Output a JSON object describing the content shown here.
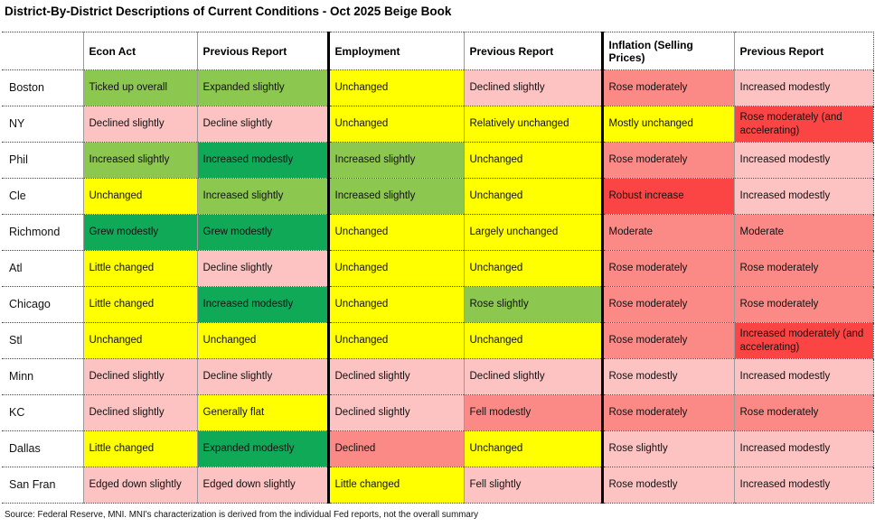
{
  "chart_data": {
    "type": "table",
    "title": "District-By-District Descriptions of Current Conditions - Oct 2025 Beige Book",
    "source": "Source: Federal Reserve, MNI. MNI's characterization is derived from the individual Fed reports, not the overall summary",
    "columns": [
      "",
      "Econ Act",
      "Previous Report",
      "Employment",
      "Previous Report",
      "Inflation (Selling Prices)",
      "Previous Report"
    ],
    "color_key": {
      "green": "#8CC750",
      "darkgreen": "#0FA958",
      "yellow": "#FFFF00",
      "pink": "#FCC3C2",
      "salmon": "#FB8A87",
      "red": "#FB4545"
    },
    "rows": [
      {
        "district": "Boston",
        "cells": [
          {
            "text": "Ticked up overall",
            "color": "green"
          },
          {
            "text": "Expanded slightly",
            "color": "green"
          },
          {
            "text": "Unchanged",
            "color": "yellow"
          },
          {
            "text": "Declined slightly",
            "color": "pink"
          },
          {
            "text": "Rose moderately",
            "color": "salmon"
          },
          {
            "text": "Increased modestly",
            "color": "pink"
          }
        ]
      },
      {
        "district": "NY",
        "cells": [
          {
            "text": "Declined slightly",
            "color": "pink"
          },
          {
            "text": "Decline slightly",
            "color": "pink"
          },
          {
            "text": "Unchanged",
            "color": "yellow"
          },
          {
            "text": "Relatively unchanged",
            "color": "yellow"
          },
          {
            "text": "Mostly unchanged",
            "color": "yellow"
          },
          {
            "text": "Rose moderately (and accelerating)",
            "color": "red"
          }
        ]
      },
      {
        "district": "Phil",
        "cells": [
          {
            "text": "Increased slightly",
            "color": "green"
          },
          {
            "text": "Increased modestly",
            "color": "darkgreen"
          },
          {
            "text": "Increased slightly",
            "color": "green"
          },
          {
            "text": "Unchanged",
            "color": "yellow"
          },
          {
            "text": "Rose moderately",
            "color": "salmon"
          },
          {
            "text": "Increased modestly",
            "color": "pink"
          }
        ]
      },
      {
        "district": "Cle",
        "cells": [
          {
            "text": "Unchanged",
            "color": "yellow"
          },
          {
            "text": "Increased slightly",
            "color": "green"
          },
          {
            "text": "Increased slightly",
            "color": "green"
          },
          {
            "text": "Unchanged",
            "color": "yellow"
          },
          {
            "text": "Robust increase",
            "color": "red"
          },
          {
            "text": "Increased modestly",
            "color": "pink"
          }
        ]
      },
      {
        "district": "Richmond",
        "cells": [
          {
            "text": "Grew modestly",
            "color": "darkgreen"
          },
          {
            "text": "Grew modestly",
            "color": "darkgreen"
          },
          {
            "text": "Unchanged",
            "color": "yellow"
          },
          {
            "text": "Largely unchanged",
            "color": "yellow"
          },
          {
            "text": "Moderate",
            "color": "salmon"
          },
          {
            "text": "Moderate",
            "color": "salmon"
          }
        ]
      },
      {
        "district": "Atl",
        "cells": [
          {
            "text": "Little changed",
            "color": "yellow"
          },
          {
            "text": "Decline slightly",
            "color": "pink"
          },
          {
            "text": "Unchanged",
            "color": "yellow"
          },
          {
            "text": "Unchanged",
            "color": "yellow"
          },
          {
            "text": "Rose moderately",
            "color": "salmon"
          },
          {
            "text": "Rose moderately",
            "color": "salmon"
          }
        ]
      },
      {
        "district": "Chicago",
        "cells": [
          {
            "text": "Little changed",
            "color": "yellow"
          },
          {
            "text": "Increased modestly",
            "color": "darkgreen"
          },
          {
            "text": "Unchanged",
            "color": "yellow"
          },
          {
            "text": "Rose slightly",
            "color": "green"
          },
          {
            "text": "Rose moderately",
            "color": "salmon"
          },
          {
            "text": "Rose moderately",
            "color": "salmon"
          }
        ]
      },
      {
        "district": "Stl",
        "cells": [
          {
            "text": "Unchanged",
            "color": "yellow"
          },
          {
            "text": "Unchanged",
            "color": "yellow"
          },
          {
            "text": "Unchanged",
            "color": "yellow"
          },
          {
            "text": "Unchanged",
            "color": "yellow"
          },
          {
            "text": "Rose moderately",
            "color": "salmon"
          },
          {
            "text": "Increased moderately (and accelerating)",
            "color": "red"
          }
        ]
      },
      {
        "district": "Minn",
        "cells": [
          {
            "text": "Declined slightly",
            "color": "pink"
          },
          {
            "text": "Decline slightly",
            "color": "pink"
          },
          {
            "text": "Declined slightly",
            "color": "pink"
          },
          {
            "text": "Declined slightly",
            "color": "pink"
          },
          {
            "text": "Rose modestly",
            "color": "pink"
          },
          {
            "text": "Increased modestly",
            "color": "pink"
          }
        ]
      },
      {
        "district": "KC",
        "cells": [
          {
            "text": "Declined slightly",
            "color": "pink"
          },
          {
            "text": "Generally flat",
            "color": "yellow"
          },
          {
            "text": "Declined slightly",
            "color": "pink"
          },
          {
            "text": "Fell modestly",
            "color": "salmon"
          },
          {
            "text": "Rose moderately",
            "color": "salmon"
          },
          {
            "text": "Rose moderately",
            "color": "salmon"
          }
        ]
      },
      {
        "district": "Dallas",
        "cells": [
          {
            "text": "Little changed",
            "color": "yellow"
          },
          {
            "text": "Expanded modestly",
            "color": "darkgreen"
          },
          {
            "text": "Declined",
            "color": "salmon"
          },
          {
            "text": "Unchanged",
            "color": "yellow"
          },
          {
            "text": "Rose slightly",
            "color": "pink"
          },
          {
            "text": "Increased modestly",
            "color": "pink"
          }
        ]
      },
      {
        "district": "San Fran",
        "cells": [
          {
            "text": "Edged down slightly",
            "color": "pink"
          },
          {
            "text": "Edged down slightly",
            "color": "pink"
          },
          {
            "text": "Little changed",
            "color": "yellow"
          },
          {
            "text": "Fell slightly",
            "color": "pink"
          },
          {
            "text": "Rose modestly",
            "color": "pink"
          },
          {
            "text": "Increased modestly",
            "color": "pink"
          }
        ]
      }
    ]
  }
}
